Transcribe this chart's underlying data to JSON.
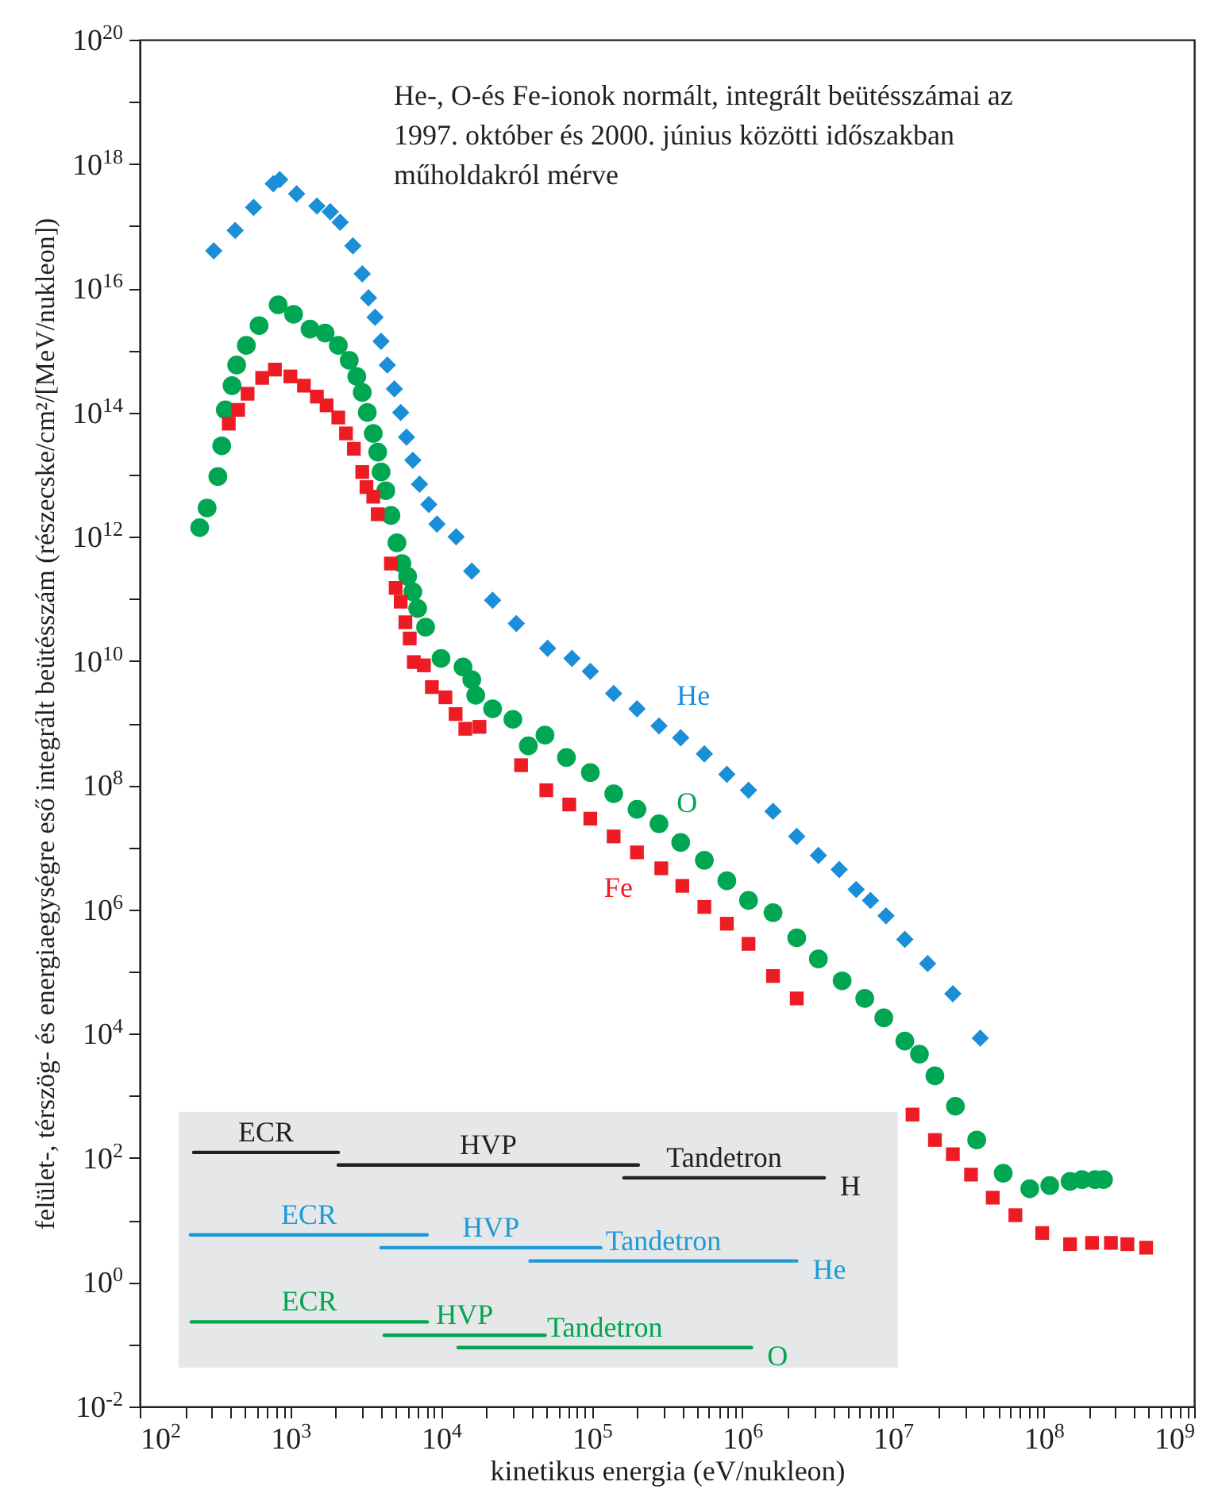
{
  "chart_data": {
    "type": "scatter",
    "title": "He-, O-és Fe-ionok normált, integrált beütésszámai az 1997. október és 2000. június közötti időszakban műholdakról mérve",
    "xlabel": "kinetikus energia (eV/nukleon)",
    "ylabel": "felület-, térszög- és energiaegységre eső integrált beütésszám (részecske/cm²/[MeV/nukleon])",
    "log": "xy",
    "grid": false,
    "xlim": [
      100,
      1000000000
    ],
    "ylim": [
      0.01,
      1e+20
    ],
    "xticks": [
      {
        "value": 100,
        "label": "10$^{2}$"
      },
      {
        "value": 200,
        "label": null
      },
      {
        "value": 300,
        "label": null
      },
      {
        "value": 400,
        "label": null
      },
      {
        "value": 500,
        "label": null
      },
      {
        "value": 600,
        "label": null
      },
      {
        "value": 700,
        "label": null
      },
      {
        "value": 800,
        "label": null
      },
      {
        "value": 900,
        "label": null
      },
      {
        "value": 1000,
        "label": "10$^{3}$"
      },
      {
        "value": 2000,
        "label": null
      },
      {
        "value": 3000,
        "label": null
      },
      {
        "value": 4000,
        "label": null
      },
      {
        "value": 5000,
        "label": null
      },
      {
        "value": 6000,
        "label": null
      },
      {
        "value": 7000,
        "label": null
      },
      {
        "value": 8000,
        "label": null
      },
      {
        "value": 9000,
        "label": null
      },
      {
        "value": 10000,
        "label": "10$^{4}$"
      },
      {
        "value": 20000,
        "label": null
      },
      {
        "value": 30000,
        "label": null
      },
      {
        "value": 40000,
        "label": null
      },
      {
        "value": 50000,
        "label": null
      },
      {
        "value": 60000,
        "label": null
      },
      {
        "value": 70000,
        "label": null
      },
      {
        "value": 80000,
        "label": null
      },
      {
        "value": 90000,
        "label": null
      },
      {
        "value": 100000,
        "label": "10$^{5}$"
      },
      {
        "value": 200000,
        "label": null
      },
      {
        "value": 300000,
        "label": null
      },
      {
        "value": 400000,
        "label": null
      },
      {
        "value": 500000,
        "label": null
      },
      {
        "value": 600000,
        "label": null
      },
      {
        "value": 700000,
        "label": null
      },
      {
        "value": 800000,
        "label": null
      },
      {
        "value": 900000,
        "label": null
      },
      {
        "value": 1000000,
        "label": "10$^{6}$"
      },
      {
        "value": 2000000,
        "label": null
      },
      {
        "value": 3000000,
        "label": null
      },
      {
        "value": 4000000,
        "label": null
      },
      {
        "value": 5000000,
        "label": null
      },
      {
        "value": 6000000,
        "label": null
      },
      {
        "value": 7000000,
        "label": null
      },
      {
        "value": 8000000,
        "label": null
      },
      {
        "value": 9000000,
        "label": null
      },
      {
        "value": 10000000,
        "label": "10$^{7}$"
      },
      {
        "value": 20000000,
        "label": null
      },
      {
        "value": 30000000,
        "label": null
      },
      {
        "value": 40000000,
        "label": null
      },
      {
        "value": 50000000,
        "label": null
      },
      {
        "value": 60000000,
        "label": null
      },
      {
        "value": 70000000,
        "label": null
      },
      {
        "value": 80000000,
        "label": null
      },
      {
        "value": 90000000,
        "label": null
      },
      {
        "value": 100000000,
        "label": "10$^{8}$"
      },
      {
        "value": 200000000,
        "label": null
      },
      {
        "value": 300000000,
        "label": null
      },
      {
        "value": 400000000,
        "label": null
      },
      {
        "value": 500000000,
        "label": null
      },
      {
        "value": 600000000,
        "label": null
      },
      {
        "value": 700000000,
        "label": null
      },
      {
        "value": 800000000,
        "label": null
      },
      {
        "value": 900000000,
        "label": null
      },
      {
        "value": 1000000000,
        "label": "10$^{9}$"
      }
    ],
    "yticks": [
      {
        "value": 0.01,
        "label": "10$^{-2}$"
      },
      {
        "value": 0.1,
        "label": null
      },
      {
        "value": 1,
        "label": "10$^{0}$"
      },
      {
        "value": 10,
        "label": null
      },
      {
        "value": 100,
        "label": "10$^{2}$"
      },
      {
        "value": 1000,
        "label": null
      },
      {
        "value": 10000,
        "label": "10$^{4}$"
      },
      {
        "value": 100000,
        "label": null
      },
      {
        "value": 1000000,
        "label": "10$^{6}$"
      },
      {
        "value": 10000000,
        "label": null
      },
      {
        "value": 100000000,
        "label": "10$^{8}$"
      },
      {
        "value": 1000000000,
        "label": null
      },
      {
        "value": 10000000000,
        "label": "10$^{10}$"
      },
      {
        "value": 100000000000,
        "label": null
      },
      {
        "value": 1000000000000,
        "label": "10$^{12}$"
      },
      {
        "value": 10000000000000,
        "label": null
      },
      {
        "value": 100000000000000,
        "label": "10$^{14}$"
      },
      {
        "value": 1000000000000000,
        "label": null
      },
      {
        "value": 10000000000000000,
        "label": "10$^{16}$"
      },
      {
        "value": 100000000000000000,
        "label": null
      },
      {
        "value": 1000000000000000000,
        "label": "10$^{18}$"
      },
      {
        "value": 10000000000000000000,
        "label": null
      },
      {
        "value": 1e+20,
        "label": "10$^{20}$"
      }
    ],
    "series": [
      {
        "name": "He",
        "color": "#1a8fd8",
        "marker": "diamond",
        "x": [
          310,
          430,
          570,
          770,
          850,
          1100,
          1500,
          1840,
          2140,
          2600,
          3000,
          3300,
          3650,
          4000,
          4400,
          4900,
          5400,
          5900,
          6500,
          7200,
          8300,
          9400,
          12600,
          16000,
          22000,
          31600,
          51000,
          74000,
          98000,
          140000,
          200000,
          280000,
          390000,
          560000,
          790000,
          1100000,
          1600000,
          2300000,
          3200000,
          4400000,
          5700000,
          7100000,
          9000000,
          12000000,
          17000000,
          25000000,
          38000000
        ],
        "values": [
          4e+16,
          8.5e+16,
          2e+17,
          4.8e+17,
          5.6e+17,
          3.3e+17,
          2.1e+17,
          1.7e+17,
          1.15e+17,
          4.8e+16,
          1.7e+16,
          7000000000000000.0,
          3400000000000000.0,
          1400000000000000.0,
          580000000000000.0,
          240000000000000.0,
          100000000000000.0,
          40000000000000.0,
          17000000000000.0,
          7000000000000.0,
          3300000000000.0,
          1600000000000.0,
          1000000000000.0,
          280000000000.0,
          95000000000.0,
          40000000000.0,
          16000000000.0,
          11000000000.0,
          6800000000.0,
          3000000000.0,
          1700000000.0,
          900000000.0,
          580000000.0,
          320000000.0,
          150000000.0,
          83000000.0,
          38000000.0,
          15000000.0,
          7400000.0,
          4400000.0,
          2100000.0,
          1400000.0,
          790000.0,
          330000.0,
          135000.0,
          44000.0,
          8500.0
        ]
      },
      {
        "name": "O",
        "color": "#00a651",
        "marker": "circle",
        "x": [
          250,
          280,
          330,
          350,
          370,
          410,
          440,
          510,
          620,
          830,
          1050,
          1350,
          1700,
          2080,
          2460,
          2760,
          3000,
          3240,
          3550,
          3800,
          4000,
          4300,
          4650,
          5100,
          5500,
          6000,
          6500,
          7000,
          7900,
          10000,
          14000,
          16000,
          17000,
          22000,
          30000,
          38000,
          49000,
          68000,
          98000,
          140000,
          200000,
          280000,
          390000,
          560000,
          790000,
          1100000,
          1600000,
          2300000,
          3200000,
          4600000,
          6500000,
          8700000,
          12000000,
          15000000,
          19000000,
          26000000,
          36000000,
          54000000,
          81000000,
          110000000,
          150000000,
          180000000,
          220000000,
          250000000
        ],
        "values": [
          1400000000000.0,
          2900000000000.0,
          9300000000000.0,
          29000000000000.0,
          110000000000000.0,
          270000000000000.0,
          580000000000000.0,
          1200000000000000.0,
          2500000000000000.0,
          5400000000000000.0,
          3800000000000000.0,
          2200000000000000.0,
          1900000000000000.0,
          1200000000000000.0,
          690000000000000.0,
          380000000000000.0,
          210000000000000.0,
          100000000000000.0,
          46000000000000.0,
          23000000000000.0,
          11000000000000.0,
          5500000000000.0,
          2200000000000.0,
          800000000000.0,
          370000000000.0,
          230000000000.0,
          130000000000.0,
          70000000000.0,
          35000000000.0,
          11000000000.0,
          8000000000.0,
          5000000000.0,
          2800000000.0,
          1700000000.0,
          1150000000.0,
          430000000.0,
          640000000.0,
          280000000.0,
          160000000.0,
          73000000.0,
          41000000.0,
          24000000.0,
          12000000.0,
          6200000.0,
          2900000.0,
          1400000.0,
          890000.0,
          350000.0,
          160000.0,
          71000.0,
          37000.0,
          18000.0,
          7600.0,
          4700.0,
          2100.0,
          680,
          195,
          57,
          32,
          36,
          42,
          45,
          45,
          45
        ]
      },
      {
        "name": "Fe",
        "color": "#ed1c24",
        "marker": "square",
        "x": [
          390,
          450,
          520,
          650,
          790,
          1000,
          1230,
          1500,
          1740,
          2080,
          2340,
          2640,
          3000,
          3200,
          3550,
          3800,
          4650,
          5000,
          5400,
          5800,
          6200,
          6600,
          7700,
          8700,
          10700,
          12500,
          14500,
          18000,
          34000,
          50000,
          71000,
          98000,
          140000,
          200000,
          290000,
          400000,
          560000,
          790000,
          1100000,
          1600000,
          2300000,
          13500000,
          19000000,
          25000000,
          33000000,
          46000000,
          65000000,
          98000000,
          150000000,
          210000000,
          280000000,
          360000000,
          480000000
        ],
        "values": [
          66000000000000.0,
          110000000000000.0,
          200000000000000.0,
          360000000000000.0,
          490000000000000.0,
          380000000000000.0,
          270000000000000.0,
          180000000000000.0,
          130000000000000.0,
          83000000000000.0,
          46000000000000.0,
          26000000000000.0,
          11000000000000.0,
          6300000000000.0,
          4400000000000.0,
          2300000000000.0,
          370000000000.0,
          150000000000.0,
          90000000000.0,
          42000000000.0,
          23000000000.0,
          9600000000.0,
          8500000000.0,
          3800000000.0,
          2600000000.0,
          1400000000.0,
          810000000.0,
          870000000.0,
          210000000.0,
          83000000.0,
          49000000.0,
          29000000.0,
          15000000.0,
          8300000.0,
          4600000.0,
          2400000.0,
          1100000.0,
          590000.0,
          280000.0,
          85000.0,
          37000.0,
          500,
          195,
          115,
          54,
          23,
          12,
          6.2,
          4.1,
          4.3,
          4.3,
          4.1,
          3.6
        ]
      },
      {
        "type": "line",
        "name": "ECR",
        "color": "#231f20",
        "x": [
          228,
          2080
        ],
        "values": [
          123,
          123
        ]
      },
      {
        "type": "line",
        "name": "HVP",
        "color": "#231f20",
        "x": [
          2080,
          204000
        ],
        "values": [
          77,
          77
        ]
      },
      {
        "type": "line",
        "name": "Tandetron",
        "color": "#231f20",
        "x": [
          164000,
          3500000
        ],
        "values": [
          48,
          48
        ]
      },
      {
        "type": "line",
        "name": "ECR",
        "color": "#1e9ad6",
        "x": [
          217,
          8100
        ],
        "values": [
          5.8,
          5.8
        ]
      },
      {
        "type": "line",
        "name": "HVP",
        "color": "#1e9ad6",
        "x": [
          4000,
          115000
        ],
        "values": [
          3.6,
          3.6
        ]
      },
      {
        "type": "line",
        "name": "Tandetron",
        "color": "#1e9ad6",
        "x": [
          39000,
          2300000
        ],
        "values": [
          2.2,
          2.2
        ]
      },
      {
        "type": "line",
        "name": "ECR",
        "color": "#00a651",
        "x": [
          220,
          8100
        ],
        "values": [
          0.23,
          0.23
        ]
      },
      {
        "type": "line",
        "name": "HVP",
        "color": "#00a651",
        "x": [
          4200,
          49000
        ],
        "values": [
          0.14,
          0.14
        ]
      },
      {
        "type": "line",
        "name": "Tandetron",
        "color": "#00a651",
        "x": [
          13000,
          1150000
        ],
        "values": [
          0.089,
          0.089
        ]
      }
    ],
    "annotations": [
      {
        "text": "H",
        "x": 3500000,
        "y": 48
      },
      {
        "text": "He",
        "x": 2300000,
        "y": 2.2
      },
      {
        "text": "O",
        "x": 1150000,
        "y": 0.089
      }
    ]
  }
}
